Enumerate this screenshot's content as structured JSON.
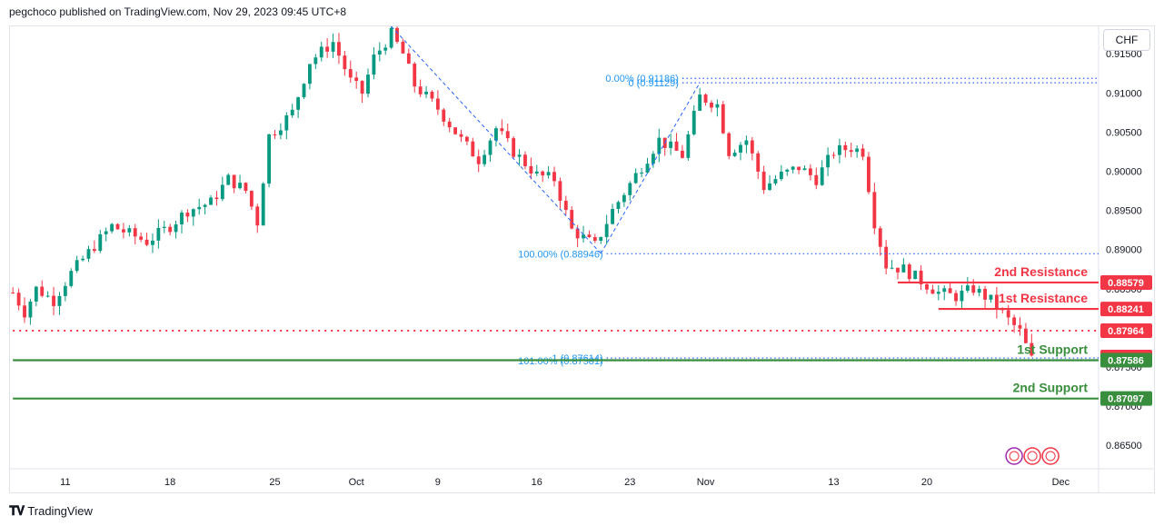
{
  "header": {
    "text": "pegchoco published on TradingView.com, Nov 29, 2023 09:45 UTC+8"
  },
  "footer": {
    "brand": "TradingView"
  },
  "currency": "CHF",
  "colors": {
    "up": "#089981",
    "down": "#f23645",
    "fib": "#2962ff",
    "resistance": "#f23645",
    "support": "#388e3c",
    "fibText": "#2196f3"
  },
  "chart_data": {
    "type": "candlestick",
    "title": "",
    "ylim": [
      0.862,
      0.9185
    ],
    "y_ticks": [
      0.865,
      0.87,
      0.875,
      0.88,
      0.885,
      0.89,
      0.895,
      0.9,
      0.905,
      0.91,
      0.915
    ],
    "y_tick_labels": [
      "0.86500",
      "0.87000",
      "0.87500",
      "0.88000",
      "0.88500",
      "0.89000",
      "0.89500",
      "0.90000",
      "0.90500",
      "0.91000",
      "0.91500"
    ],
    "x_labels": [
      "11",
      "18",
      "25",
      "Oct",
      "9",
      "16",
      "23",
      "Nov",
      "13",
      "20",
      "Dec"
    ],
    "close_path": [
      [
        0,
        0.8845
      ],
      [
        2,
        0.882
      ],
      [
        4,
        0.885
      ],
      [
        7,
        0.8835
      ],
      [
        10,
        0.887
      ],
      [
        14,
        0.8905
      ],
      [
        17,
        0.893
      ],
      [
        20,
        0.892
      ],
      [
        23,
        0.891
      ],
      [
        27,
        0.893
      ],
      [
        30,
        0.895
      ],
      [
        34,
        0.896
      ],
      [
        37,
        0.899
      ],
      [
        40,
        0.8975
      ],
      [
        42,
        0.8935
      ],
      [
        44,
        0.9045
      ],
      [
        48,
        0.9075
      ],
      [
        51,
        0.914
      ],
      [
        55,
        0.9165
      ],
      [
        58,
        0.9115
      ],
      [
        60,
        0.91
      ],
      [
        62,
        0.9145
      ],
      [
        65,
        0.9175
      ],
      [
        67,
        0.915
      ],
      [
        69,
        0.911
      ],
      [
        73,
        0.908
      ],
      [
        77,
        0.904
      ],
      [
        80,
        0.9015
      ],
      [
        83,
        0.9055
      ],
      [
        86,
        0.9025
      ],
      [
        90,
        0.8995
      ],
      [
        93,
        0.899
      ],
      [
        96,
        0.8925
      ],
      [
        100,
        0.8905
      ],
      [
        103,
        0.895
      ],
      [
        107,
        0.8995
      ],
      [
        111,
        0.904
      ],
      [
        115,
        0.902
      ],
      [
        118,
        0.9095
      ],
      [
        121,
        0.9085
      ],
      [
        123,
        0.9025
      ],
      [
        126,
        0.904
      ],
      [
        129,
        0.898
      ],
      [
        132,
        0.8995
      ],
      [
        135,
        0.9005
      ],
      [
        138,
        0.899
      ],
      [
        141,
        0.9025
      ],
      [
        144,
        0.903
      ],
      [
        146,
        0.9025
      ],
      [
        148,
        0.8935
      ],
      [
        150,
        0.888
      ],
      [
        153,
        0.8875
      ],
      [
        156,
        0.886
      ],
      [
        159,
        0.8845
      ],
      [
        162,
        0.884
      ],
      [
        165,
        0.885
      ],
      [
        168,
        0.8835
      ],
      [
        171,
        0.881
      ],
      [
        173,
        0.8795
      ],
      [
        175,
        0.876
      ]
    ],
    "last_index": 175,
    "levels": [
      {
        "name": "2nd Resistance",
        "value": 0.88579,
        "label": "0.88579",
        "kind": "resistance",
        "start_index": 152
      },
      {
        "name": "1st Resistance",
        "value": 0.88241,
        "label": "0.88241",
        "kind": "resistance",
        "start_index": 159
      },
      {
        "name": "",
        "value": 0.87964,
        "label": "0.87964",
        "kind": "dotted-red",
        "start_index": 0
      },
      {
        "name": "",
        "value": 0.87627,
        "label": "0.87627",
        "kind": "price",
        "start_index": 175
      },
      {
        "name": "1st Support",
        "value": 0.87586,
        "label": "0.87586",
        "kind": "support",
        "start_index": 0
      },
      {
        "name": "2nd Support",
        "value": 0.87097,
        "label": "0.87097",
        "kind": "support",
        "start_index": 0
      }
    ],
    "fib_levels": [
      {
        "text": "0.00% (0.91186)",
        "value": 0.91186,
        "start_index": 115
      },
      {
        "text": "0 (0.91129)",
        "value": 0.91129,
        "start_index": 115
      },
      {
        "text": "100.00% (0.88946)",
        "value": 0.88946,
        "start_index": 102
      },
      {
        "text": "1 (0.87614)",
        "value": 0.87614,
        "start_index": 102
      },
      {
        "text": "101.00% (0.87581)",
        "value": 0.87581,
        "start_index": 102
      }
    ],
    "fib_trendlines": [
      {
        "from": [
          65,
          0.9185
        ],
        "to": [
          101,
          0.8895
        ]
      },
      {
        "from": [
          101,
          0.8895
        ],
        "to": [
          118,
          0.9113
        ]
      }
    ]
  }
}
